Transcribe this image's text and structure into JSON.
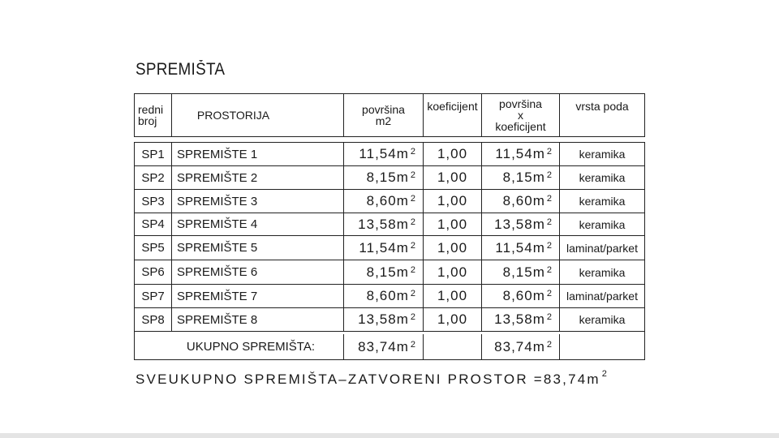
{
  "title": "SPREMIŠTA",
  "headers": {
    "redni_broj": [
      "redni",
      "broj"
    ],
    "prostorija": "PROSTORIJA",
    "povrsina": [
      "površina",
      "m2"
    ],
    "koeficijent": "koeficijent",
    "povrsina_x_koef": [
      "površina",
      "x",
      "koeficijent"
    ],
    "vrsta_poda": "vrsta poda"
  },
  "rows": [
    {
      "id": "SP1",
      "name": "SPREMIŠTE 1",
      "area": "11,54m",
      "coef": "1,00",
      "area_coef": "11,54m",
      "floor": "keramika"
    },
    {
      "id": "SP2",
      "name": "SPREMIŠTE 2",
      "area": "8,15m",
      "coef": "1,00",
      "area_coef": "8,15m",
      "floor": "keramika"
    },
    {
      "id": "SP3",
      "name": "SPREMIŠTE 3",
      "area": "8,60m",
      "coef": "1,00",
      "area_coef": "8,60m",
      "floor": "keramika"
    },
    {
      "id": "SP4",
      "name": "SPREMIŠTE 4",
      "area": "13,58m",
      "coef": "1,00",
      "area_coef": "13,58m",
      "floor": "keramika"
    },
    {
      "id": "SP5",
      "name": "SPREMIŠTE 5",
      "area": "11,54m",
      "coef": "1,00",
      "area_coef": "11,54m",
      "floor": "laminat/parket"
    },
    {
      "id": "SP6",
      "name": "SPREMIŠTE 6",
      "area": "8,15m",
      "coef": "1,00",
      "area_coef": "8,15m",
      "floor": "keramika"
    },
    {
      "id": "SP7",
      "name": "SPREMIŠTE 7",
      "area": "8,60m",
      "coef": "1,00",
      "area_coef": "8,60m",
      "floor": "laminat/parket"
    },
    {
      "id": "SP8",
      "name": "SPREMIŠTE 8",
      "area": "13,58m",
      "coef": "1,00",
      "area_coef": "13,58m",
      "floor": "keramika"
    }
  ],
  "unit_exponent": "2",
  "total": {
    "label": "UKUPNO SPREMIŠTA:",
    "area": "83,74m",
    "area_coef": "83,74m"
  },
  "grand_total": "SVEUKUPNO SPREMIŠTA–ZATVORENI PROSTOR =83,74m"
}
